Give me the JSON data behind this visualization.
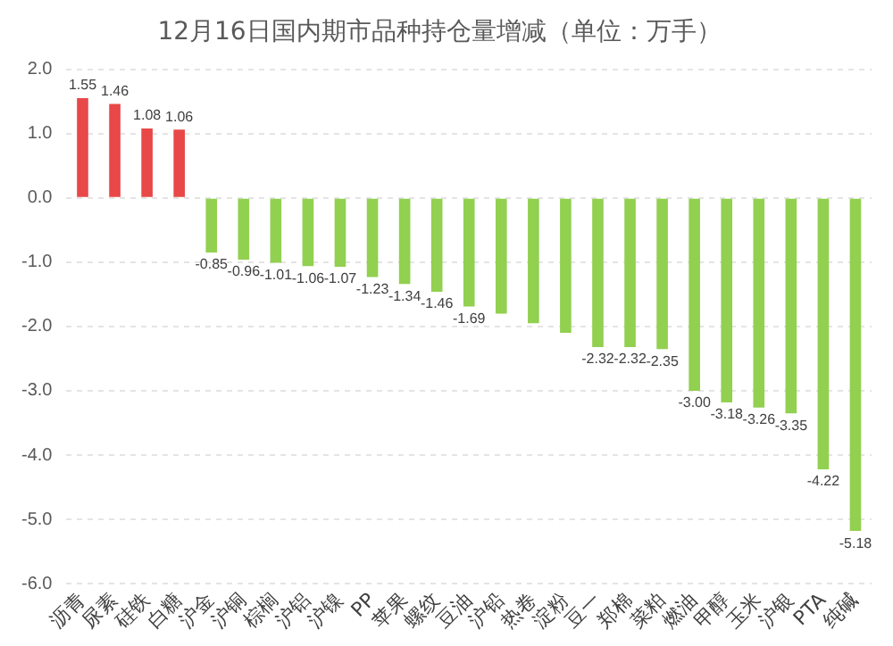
{
  "chart_data": {
    "type": "bar",
    "title": "12月16日国内期市品种持仓量增减（单位：万手）",
    "categories": [
      "沥青",
      "尿素",
      "硅铁",
      "白糖",
      "沪金",
      "沪铜",
      "棕榈",
      "沪铝",
      "沪镍",
      "PP",
      "苹果",
      "螺纹",
      "豆油",
      "沪铅",
      "热卷",
      "淀粉",
      "豆一",
      "郑棉",
      "菜粕",
      "燃油",
      "甲醇",
      "玉米",
      "沪银",
      "PTA",
      "纯碱"
    ],
    "values": [
      1.55,
      1.46,
      1.08,
      1.06,
      -0.85,
      -0.96,
      -1.01,
      -1.06,
      -1.07,
      -1.23,
      -1.34,
      -1.46,
      -1.69,
      -1.8,
      -1.95,
      -2.1,
      -2.32,
      -2.32,
      -2.35,
      -3.0,
      -3.18,
      -3.26,
      -3.35,
      -4.22,
      -5.18
    ],
    "colors": [
      "#e84848",
      "#e84848",
      "#e84848",
      "#e84848",
      "#92d050",
      "#92d050",
      "#92d050",
      "#92d050",
      "#92d050",
      "#92d050",
      "#92d050",
      "#92d050",
      "#92d050",
      "#92d050",
      "#92d050",
      "#92d050",
      "#92d050",
      "#92d050",
      "#92d050",
      "#92d050",
      "#92d050",
      "#92d050",
      "#92d050",
      "#92d050",
      "#92d050"
    ],
    "ylim": [
      -6,
      2
    ],
    "yticks": [
      {
        "value": -6,
        "label": "-6.0"
      },
      {
        "value": -5,
        "label": "-5.0"
      },
      {
        "value": -4,
        "label": "-4.0"
      },
      {
        "value": -3,
        "label": "-3.0"
      },
      {
        "value": -2,
        "label": "-2.0"
      },
      {
        "value": -1,
        "label": "-1.0"
      },
      {
        "value": 0,
        "label": "0.0"
      },
      {
        "value": 1,
        "label": "1.0"
      },
      {
        "value": 2,
        "label": "2.0"
      }
    ],
    "value_labels": [
      "1.55",
      "1.46",
      "1.08",
      "1.06",
      "-0.85",
      "-0.96",
      "-1.01",
      "-1.06",
      "-1.07",
      "-1.23",
      "-1.34",
      "-1.46",
      "-1.69",
      null,
      null,
      null,
      "-2.32",
      "-2.32",
      "-2.35",
      "-3.00",
      "-3.18",
      "-3.26",
      "-3.35",
      "-4.22",
      "-5.18"
    ],
    "grid": "y",
    "legend": false
  }
}
